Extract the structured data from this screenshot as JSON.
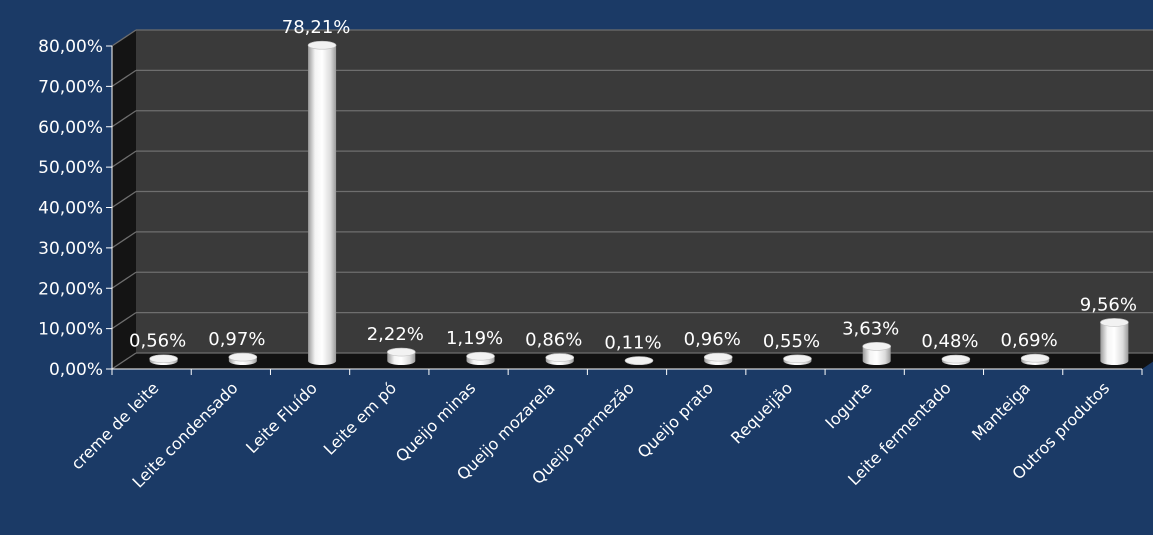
{
  "chart_data": {
    "type": "bar",
    "title": "",
    "xlabel": "",
    "ylabel": "",
    "ylim": [
      0,
      80
    ],
    "grid": true,
    "legend": "none",
    "y_tick_labels": [
      "0,00%",
      "10,00%",
      "20,00%",
      "30,00%",
      "40,00%",
      "50,00%",
      "60,00%",
      "70,00%",
      "80,00%"
    ],
    "categories": [
      "creme de leite",
      "Leite condensado",
      "Leite Fluído",
      "Leite em pó",
      "Queijo minas",
      "Queijo mozarela",
      "Queijo parmezão",
      "Queijo prato",
      "Requeijão",
      "Iogurte",
      "Leite fermentado",
      "Manteiga",
      "Outros produtos"
    ],
    "values": [
      0.56,
      0.97,
      78.21,
      2.22,
      1.19,
      0.86,
      0.11,
      0.96,
      0.55,
      3.63,
      0.48,
      0.69,
      9.56
    ],
    "value_labels": [
      "0,56%",
      "0,97%",
      "78,21%",
      "2,22%",
      "1,19%",
      "0,86%",
      "0,11%",
      "0,96%",
      "0,55%",
      "3,63%",
      "0,48%",
      "0,69%",
      "9,56%"
    ]
  },
  "colors": {
    "background": "#1b3a66",
    "plot_back": "#3a3a3a",
    "plot_side": "#141414",
    "floor": "#121212",
    "gridline": "#6e6e6e",
    "bar": "#ffffff",
    "text": "#ffffff"
  }
}
